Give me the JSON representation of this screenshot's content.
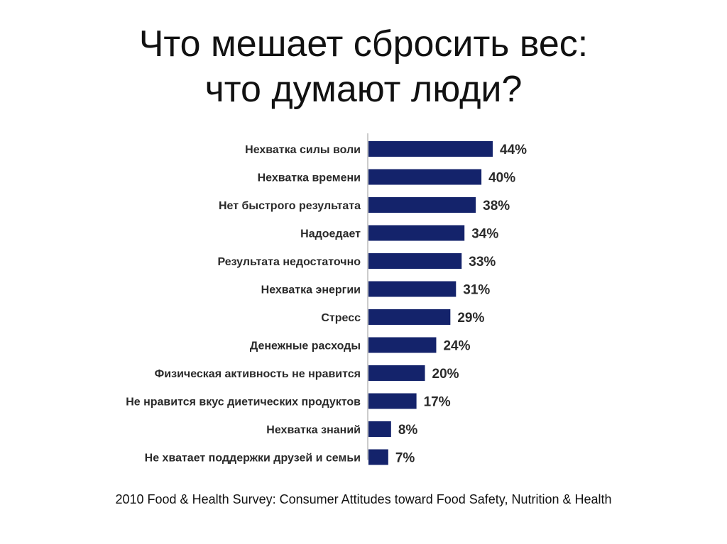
{
  "chart_data": {
    "type": "bar",
    "orientation": "horizontal",
    "title_lines": [
      "Что мешает сбросить вес:",
      "что думают люди?"
    ],
    "categories": [
      "Нехватка силы воли",
      "Нехватка времени",
      "Нет быстрого результата",
      "Надоедает",
      "Результата недостаточно",
      "Нехватка энергии",
      "Стресс",
      "Денежные расходы",
      "Физическая активность не нравится",
      "Не нравится вкус диетических продуктов",
      "Нехватка знаний",
      "Не хватает поддержки друзей и семьи"
    ],
    "values": [
      44,
      40,
      38,
      34,
      33,
      31,
      29,
      24,
      20,
      17,
      8,
      7
    ],
    "value_labels": [
      "44%",
      "40%",
      "38%",
      "34%",
      "33%",
      "31%",
      "29%",
      "24%",
      "20%",
      "17%",
      "8%",
      "7%"
    ],
    "unit": "%",
    "bar_color": "#14236b",
    "xlim": [
      0,
      44
    ],
    "grid": false,
    "legend": "none",
    "source": "2010 Food & Health Survey: Consumer Attitudes toward Food Safety, Nutrition & Health"
  }
}
